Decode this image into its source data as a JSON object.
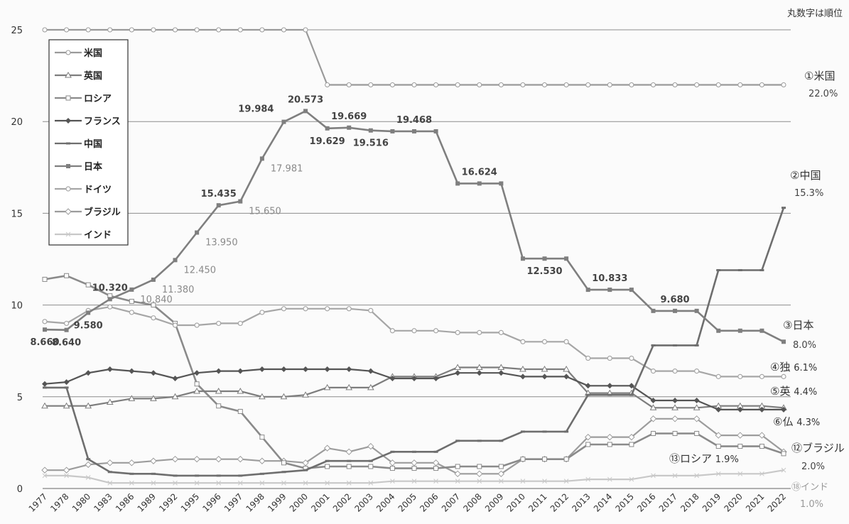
{
  "note": "丸数字は順位",
  "chart_data": {
    "type": "line",
    "ylim": [
      0,
      25
    ],
    "yticks": [
      0,
      5,
      10,
      15,
      20,
      25
    ],
    "grid": "horizontal",
    "legend_placement": "top-left",
    "categories": [
      "1977",
      "1978",
      "1980",
      "1983",
      "1986",
      "1989",
      "1992",
      "1995",
      "1996",
      "1997",
      "1998",
      "1999",
      "2000",
      "2001",
      "2002",
      "2003",
      "2004",
      "2005",
      "2006",
      "2007",
      "2008",
      "2009",
      "2010",
      "2011",
      "2012",
      "2013",
      "2014",
      "2015",
      "2016",
      "2017",
      "2018",
      "2019",
      "2020",
      "2021",
      "2022"
    ],
    "series": [
      {
        "name": "米国",
        "color": "#9a9a9a",
        "marker": "circle",
        "values": [
          25,
          25,
          25,
          25,
          25,
          25,
          25,
          25,
          25,
          25,
          25,
          25,
          25,
          22,
          22,
          22,
          22,
          22,
          22,
          22,
          22,
          22,
          22,
          22,
          22,
          22,
          22,
          22,
          22,
          22,
          22,
          22,
          22,
          22,
          22
        ]
      },
      {
        "name": "英国",
        "color": "#7d7d7d",
        "marker": "triangle",
        "values": [
          4.5,
          4.5,
          4.5,
          4.7,
          4.9,
          4.9,
          5.0,
          5.3,
          5.3,
          5.3,
          5.0,
          5.0,
          5.1,
          5.5,
          5.5,
          5.5,
          6.1,
          6.1,
          6.1,
          6.6,
          6.6,
          6.6,
          6.5,
          6.5,
          6.5,
          5.2,
          5.2,
          5.2,
          4.4,
          4.4,
          4.4,
          4.5,
          4.5,
          4.5,
          4.4
        ]
      },
      {
        "name": "ロシア",
        "color": "#8a8a8a",
        "marker": "square-open",
        "values": [
          11.4,
          11.6,
          11.1,
          10.5,
          10.2,
          10.0,
          9.0,
          5.7,
          4.5,
          4.2,
          2.8,
          1.4,
          1.1,
          1.2,
          1.2,
          1.2,
          1.1,
          1.1,
          1.1,
          1.2,
          1.2,
          1.2,
          1.6,
          1.6,
          1.6,
          2.4,
          2.4,
          2.4,
          3.0,
          3.0,
          3.0,
          2.3,
          2.3,
          2.3,
          1.9
        ]
      },
      {
        "name": "フランス",
        "color": "#555555",
        "marker": "diamond",
        "values": [
          5.7,
          5.8,
          6.3,
          6.5,
          6.4,
          6.3,
          6.0,
          6.3,
          6.4,
          6.4,
          6.5,
          6.5,
          6.5,
          6.5,
          6.5,
          6.4,
          6.0,
          6.0,
          6.0,
          6.3,
          6.3,
          6.3,
          6.1,
          6.1,
          6.1,
          5.6,
          5.6,
          5.6,
          4.8,
          4.8,
          4.8,
          4.3,
          4.3,
          4.3,
          4.3
        ]
      },
      {
        "name": "中国",
        "color": "#6e6e6e",
        "marker": "dash",
        "values": [
          5.5,
          5.5,
          1.6,
          0.9,
          0.8,
          0.8,
          0.7,
          0.7,
          0.7,
          0.7,
          0.8,
          0.9,
          1.0,
          1.5,
          1.5,
          1.5,
          2.0,
          2.0,
          2.0,
          2.6,
          2.6,
          2.6,
          3.1,
          3.1,
          3.1,
          5.1,
          5.1,
          5.1,
          7.8,
          7.8,
          7.8,
          11.9,
          11.9,
          11.9,
          15.3
        ]
      },
      {
        "name": "日本",
        "color": "#7f7f7f",
        "marker": "square",
        "values": [
          8.66,
          8.64,
          9.58,
          10.32,
          10.84,
          11.38,
          12.45,
          13.95,
          15.435,
          15.65,
          17.981,
          19.984,
          20.573,
          19.629,
          19.669,
          19.516,
          19.468,
          19.468,
          19.468,
          16.624,
          16.624,
          16.624,
          12.53,
          12.53,
          12.53,
          10.833,
          10.833,
          10.833,
          9.68,
          9.68,
          9.68,
          8.6,
          8.6,
          8.6,
          8.0
        ]
      },
      {
        "name": "ドイツ",
        "color": "#a6a6a6",
        "marker": "circle-open",
        "values": [
          9.1,
          9.0,
          9.7,
          9.9,
          9.6,
          9.3,
          8.9,
          8.9,
          9.0,
          9.0,
          9.6,
          9.8,
          9.8,
          9.8,
          9.8,
          9.7,
          8.6,
          8.6,
          8.6,
          8.5,
          8.5,
          8.5,
          8.0,
          8.0,
          8.0,
          7.1,
          7.1,
          7.1,
          6.4,
          6.4,
          6.4,
          6.1,
          6.1,
          6.1,
          6.1
        ]
      },
      {
        "name": "ブラジル",
        "color": "#9c9c9c",
        "marker": "diamond-open",
        "values": [
          1.0,
          1.0,
          1.3,
          1.4,
          1.4,
          1.5,
          1.6,
          1.6,
          1.6,
          1.6,
          1.5,
          1.5,
          1.4,
          2.2,
          2.0,
          2.3,
          1.4,
          1.4,
          1.4,
          0.8,
          0.8,
          0.8,
          1.6,
          1.6,
          1.6,
          2.8,
          2.8,
          2.8,
          3.8,
          3.8,
          3.8,
          2.9,
          2.9,
          2.9,
          2.0
        ]
      },
      {
        "name": "インド",
        "color": "#c8c8c8",
        "marker": "x",
        "values": [
          0.7,
          0.7,
          0.6,
          0.3,
          0.3,
          0.3,
          0.3,
          0.3,
          0.3,
          0.3,
          0.3,
          0.3,
          0.3,
          0.3,
          0.3,
          0.3,
          0.4,
          0.4,
          0.4,
          0.4,
          0.4,
          0.4,
          0.4,
          0.4,
          0.4,
          0.5,
          0.5,
          0.5,
          0.7,
          0.7,
          0.7,
          0.8,
          0.8,
          0.8,
          1.0
        ]
      }
    ],
    "japan_labels": [
      {
        "text": "8.660",
        "at": "1977",
        "pos": "below"
      },
      {
        "text": "8.640",
        "at": "1978",
        "pos": "below"
      },
      {
        "text": "9.580",
        "at": "1980",
        "pos": "below"
      },
      {
        "text": "10.320",
        "at": "1983",
        "pos": "above"
      },
      {
        "text": "10.840",
        "at": "1986",
        "pos": "below-right"
      },
      {
        "text": "11.380",
        "at": "1989",
        "pos": "below-right"
      },
      {
        "text": "12.450",
        "at": "1992",
        "pos": "below-right"
      },
      {
        "text": "13.950",
        "at": "1995",
        "pos": "below-right"
      },
      {
        "text": "15.435",
        "at": "1996",
        "pos": "above"
      },
      {
        "text": "15.650",
        "at": "1997",
        "pos": "below-right"
      },
      {
        "text": "17.981",
        "at": "1998",
        "pos": "below-right"
      },
      {
        "text": "19.984",
        "at": "1999",
        "pos": "left"
      },
      {
        "text": "20.573",
        "at": "2000",
        "pos": "above"
      },
      {
        "text": "19.629",
        "at": "2001",
        "pos": "below"
      },
      {
        "text": "19.669",
        "at": "2002",
        "pos": "above"
      },
      {
        "text": "19.516",
        "at": "2003",
        "pos": "below"
      },
      {
        "text": "19.468",
        "at": "2005",
        "pos": "above"
      },
      {
        "text": "16.624",
        "at": "2008",
        "pos": "above"
      },
      {
        "text": "12.530",
        "at": "2011",
        "pos": "below"
      },
      {
        "text": "10.833",
        "at": "2014",
        "pos": "above"
      },
      {
        "text": "9.680",
        "at": "2017",
        "pos": "above"
      }
    ],
    "rank_labels": [
      {
        "num": "①",
        "name": "米国",
        "value": "22.0%"
      },
      {
        "num": "②",
        "name": "中国",
        "value": "15.3%"
      },
      {
        "num": "③",
        "name": "日本",
        "value": "8.0%"
      },
      {
        "num": "④",
        "name": "独",
        "value": "6.1%"
      },
      {
        "num": "⑤",
        "name": "英",
        "value": "4.4%"
      },
      {
        "num": "⑥",
        "name": "仏",
        "value": "4.3%"
      },
      {
        "num": "⑫",
        "name": "ブラジル",
        "value": "2.0%"
      },
      {
        "num": "⑬",
        "name": "ロシア",
        "value": "1.9%"
      },
      {
        "num": "⑱",
        "name": "インド",
        "value": "1.0%"
      }
    ]
  }
}
